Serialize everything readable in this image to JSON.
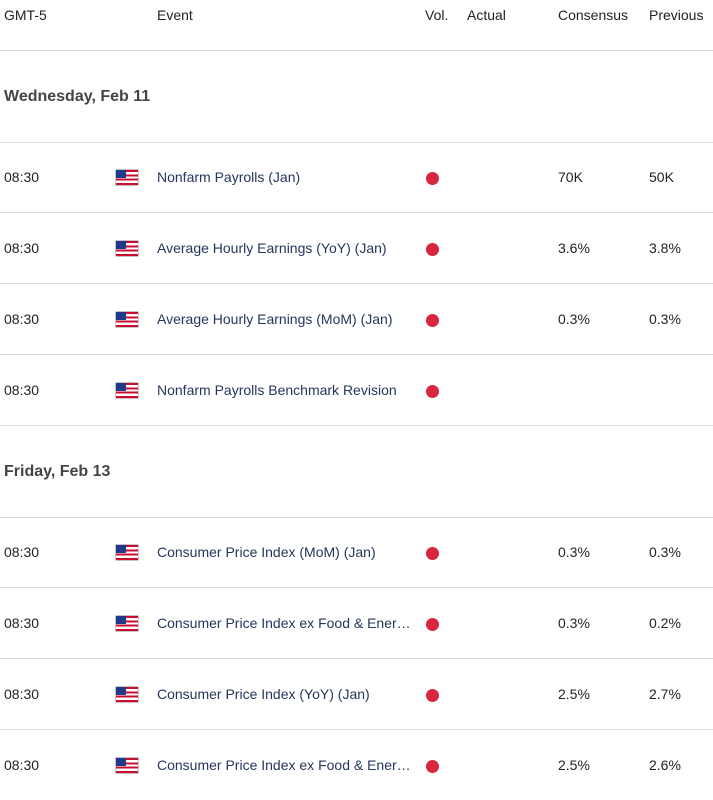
{
  "header": {
    "timezone": "GMT-5",
    "event": "Event",
    "vol": "Vol.",
    "actual": "Actual",
    "consensus": "Consensus",
    "previous": "Previous"
  },
  "colors": {
    "vol_high": "#d7263d",
    "event_text": "#25365e",
    "divider": "#d9d9d9"
  },
  "days": [
    {
      "label": "Wednesday, Feb 11",
      "events": [
        {
          "time": "08:30",
          "country_icon": "us-flag-icon",
          "name": "Nonfarm Payrolls (Jan)",
          "volatility": "high",
          "actual": "",
          "consensus": "70K",
          "previous": "50K"
        },
        {
          "time": "08:30",
          "country_icon": "us-flag-icon",
          "name": "Average Hourly Earnings (YoY) (Jan)",
          "volatility": "high",
          "actual": "",
          "consensus": "3.6%",
          "previous": "3.8%"
        },
        {
          "time": "08:30",
          "country_icon": "us-flag-icon",
          "name": "Average Hourly Earnings (MoM) (Jan)",
          "volatility": "high",
          "actual": "",
          "consensus": "0.3%",
          "previous": "0.3%"
        },
        {
          "time": "08:30",
          "country_icon": "us-flag-icon",
          "name": "Nonfarm Payrolls Benchmark Revision",
          "volatility": "high",
          "actual": "",
          "consensus": "",
          "previous": ""
        }
      ]
    },
    {
      "label": "Friday, Feb 13",
      "events": [
        {
          "time": "08:30",
          "country_icon": "us-flag-icon",
          "name": "Consumer Price Index (MoM) (Jan)",
          "volatility": "high",
          "actual": "",
          "consensus": "0.3%",
          "previous": "0.3%"
        },
        {
          "time": "08:30",
          "country_icon": "us-flag-icon",
          "name": "Consumer Price Index ex Food & Ener…",
          "volatility": "high",
          "actual": "",
          "consensus": "0.3%",
          "previous": "0.2%"
        },
        {
          "time": "08:30",
          "country_icon": "us-flag-icon",
          "name": "Consumer Price Index (YoY) (Jan)",
          "volatility": "high",
          "actual": "",
          "consensus": "2.5%",
          "previous": "2.7%"
        },
        {
          "time": "08:30",
          "country_icon": "us-flag-icon",
          "name": "Consumer Price Index ex Food & Ener…",
          "volatility": "high",
          "actual": "",
          "consensus": "2.5%",
          "previous": "2.6%"
        }
      ]
    }
  ]
}
